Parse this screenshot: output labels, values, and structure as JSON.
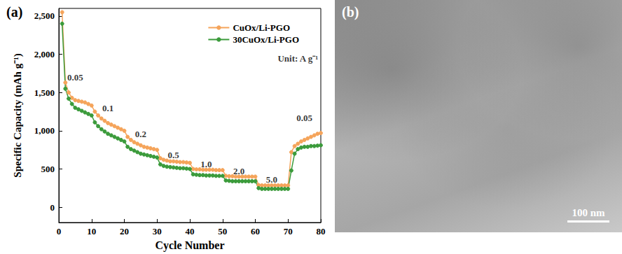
{
  "chart_data": {
    "type": "line",
    "title": "(a)",
    "x_label": "Cycle Number",
    "y_label": "Specific Capacity (mAh g⁻¹)",
    "x": [
      1,
      2,
      3,
      4,
      5,
      6,
      7,
      8,
      9,
      10,
      11,
      12,
      13,
      14,
      15,
      16,
      17,
      18,
      19,
      20,
      21,
      22,
      23,
      24,
      25,
      26,
      27,
      28,
      29,
      30,
      31,
      32,
      33,
      34,
      35,
      36,
      37,
      38,
      39,
      40,
      41,
      42,
      43,
      44,
      45,
      46,
      47,
      48,
      49,
      50,
      51,
      52,
      53,
      54,
      55,
      56,
      57,
      58,
      59,
      60,
      61,
      62,
      63,
      64,
      65,
      66,
      67,
      68,
      69,
      70,
      71,
      72,
      73,
      74,
      75,
      76,
      77,
      78,
      79,
      80
    ],
    "xlim": [
      0,
      80
    ],
    "xticks": [
      0,
      10,
      20,
      30,
      40,
      50,
      60,
      70,
      80
    ],
    "ylim": [
      -200,
      2600
    ],
    "yticks": [
      0,
      500,
      1000,
      1500,
      2000,
      2500
    ],
    "grid": false,
    "legend": "upper right",
    "series": [
      {
        "name": "CuOx/Li-PGO",
        "color": "#f5a45a",
        "marker": "circle",
        "values": [
          2550,
          1630,
          1500,
          1430,
          1400,
          1390,
          1380,
          1370,
          1350,
          1330,
          1250,
          1200,
          1160,
          1130,
          1100,
          1080,
          1060,
          1040,
          1020,
          1000,
          920,
          880,
          850,
          830,
          810,
          790,
          780,
          770,
          760,
          750,
          640,
          620,
          610,
          600,
          600,
          595,
          590,
          590,
          585,
          580,
          500,
          495,
          495,
          490,
          490,
          490,
          490,
          485,
          485,
          485,
          410,
          405,
          405,
          400,
          400,
          400,
          400,
          400,
          400,
          400,
          290,
          285,
          285,
          285,
          285,
          285,
          285,
          285,
          285,
          285,
          720,
          800,
          830,
          860,
          880,
          900,
          920,
          940,
          960,
          970
        ]
      },
      {
        "name": "30CuOx/Li-PGO",
        "color": "#3b9b3b",
        "marker": "circle",
        "values": [
          2400,
          1550,
          1420,
          1350,
          1300,
          1280,
          1260,
          1240,
          1220,
          1200,
          1110,
          1060,
          1020,
          990,
          960,
          940,
          920,
          900,
          880,
          860,
          790,
          760,
          740,
          720,
          700,
          690,
          680,
          670,
          660,
          650,
          560,
          540,
          530,
          525,
          520,
          515,
          510,
          510,
          505,
          500,
          430,
          425,
          420,
          420,
          415,
          415,
          415,
          410,
          410,
          410,
          350,
          345,
          340,
          340,
          340,
          340,
          340,
          340,
          340,
          340,
          250,
          240,
          240,
          240,
          240,
          240,
          240,
          240,
          240,
          240,
          480,
          700,
          760,
          780,
          790,
          790,
          800,
          800,
          805,
          810
        ]
      }
    ],
    "annotations": [
      {
        "text": "0.05",
        "x": 5,
        "y": 1700
      },
      {
        "text": "0.1",
        "x": 15,
        "y": 1300
      },
      {
        "text": "0.2",
        "x": 25,
        "y": 960
      },
      {
        "text": "0.5",
        "x": 35,
        "y": 680
      },
      {
        "text": "1.0",
        "x": 45,
        "y": 560
      },
      {
        "text": "2.0",
        "x": 55,
        "y": 470
      },
      {
        "text": "5.0",
        "x": 65,
        "y": 360
      },
      {
        "text": "0.05",
        "x": 75,
        "y": 1170
      },
      {
        "text": "Unit: A g⁻¹",
        "x": 73,
        "y": 1950
      }
    ]
  },
  "image_panel": {
    "label": "(b)",
    "scale_bar": "100 nm"
  }
}
